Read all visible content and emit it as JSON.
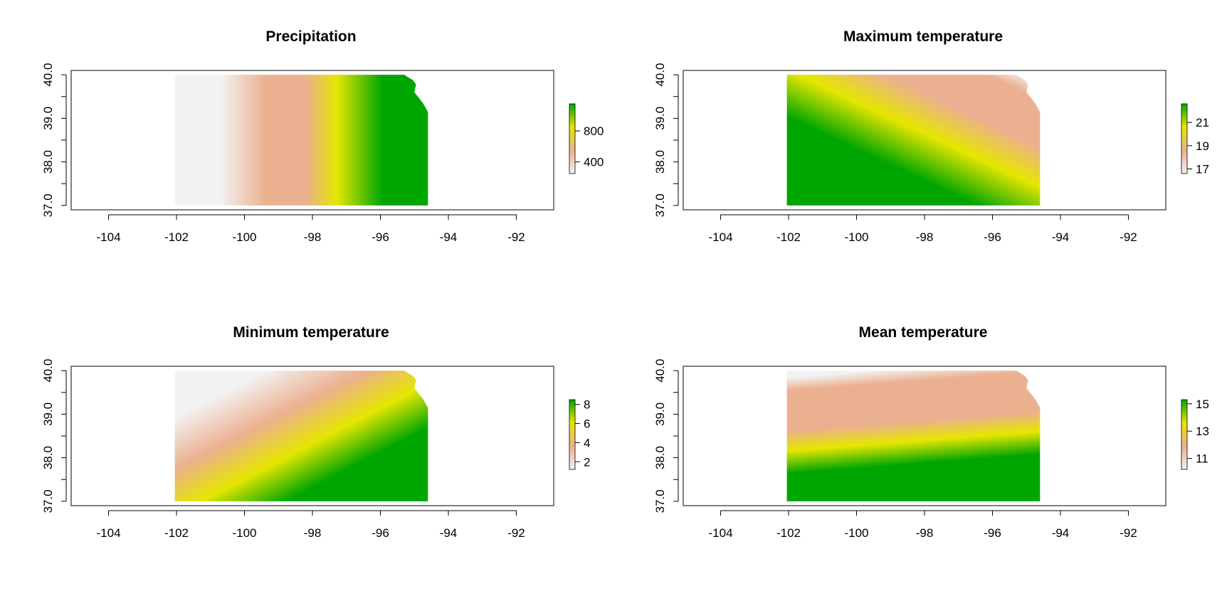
{
  "chart_data": [
    {
      "type": "heatmap",
      "title": "Precipitation",
      "xlabel": "",
      "ylabel": "",
      "xlim": [
        -105.1,
        -90.9
      ],
      "ylim": [
        36.9,
        40.1
      ],
      "xticks": [
        -104,
        -102,
        -100,
        -98,
        -96,
        -94,
        -92
      ],
      "xtick_labels": [
        "-104",
        "-102",
        "-100",
        "-98",
        "-96",
        "-94",
        "-92"
      ],
      "yticks": [
        37.0,
        38.0,
        39.0,
        40.0
      ],
      "ytick_labels": [
        "37.0",
        "38.0",
        "39.0",
        "40.0"
      ],
      "grid": false,
      "legend": {
        "position": "right",
        "range": [
          250,
          1150
        ],
        "ticks": [
          400,
          800
        ],
        "labels": [
          "400",
          "800"
        ]
      },
      "raster": {
        "extent": {
          "x": [
            -102.05,
            -94.6
          ],
          "y": [
            37.0,
            40.0
          ]
        },
        "pattern": "west-to-east"
      }
    },
    {
      "type": "heatmap",
      "title": "Maximum temperature",
      "xlabel": "",
      "ylabel": "",
      "xlim": [
        -105.1,
        -90.9
      ],
      "ylim": [
        36.9,
        40.1
      ],
      "xticks": [
        -104,
        -102,
        -100,
        -98,
        -96,
        -94,
        -92
      ],
      "xtick_labels": [
        "-104",
        "-102",
        "-100",
        "-98",
        "-96",
        "-94",
        "-92"
      ],
      "yticks": [
        37.0,
        38.0,
        39.0,
        40.0
      ],
      "ytick_labels": [
        "37.0",
        "38.0",
        "39.0",
        "40.0"
      ],
      "grid": false,
      "legend": {
        "position": "right",
        "range": [
          16.6,
          22.6
        ],
        "ticks": [
          17,
          19,
          21
        ],
        "labels": [
          "17",
          "19",
          "21"
        ]
      },
      "raster": {
        "extent": {
          "x": [
            -102.05,
            -94.6
          ],
          "y": [
            37.0,
            40.0
          ]
        },
        "pattern": "southwest-high"
      }
    },
    {
      "type": "heatmap",
      "title": "Minimum temperature",
      "xlabel": "",
      "ylabel": "",
      "xlim": [
        -105.1,
        -90.9
      ],
      "ylim": [
        36.9,
        40.1
      ],
      "xticks": [
        -104,
        -102,
        -100,
        -98,
        -96,
        -94,
        -92
      ],
      "xtick_labels": [
        "-104",
        "-102",
        "-100",
        "-98",
        "-96",
        "-94",
        "-92"
      ],
      "yticks": [
        37.0,
        38.0,
        39.0,
        40.0
      ],
      "ytick_labels": [
        "37.0",
        "38.0",
        "39.0",
        "40.0"
      ],
      "grid": false,
      "legend": {
        "position": "right",
        "range": [
          1.2,
          8.5
        ],
        "ticks": [
          2,
          4,
          6,
          8
        ],
        "labels": [
          "2",
          "4",
          "6",
          "8"
        ]
      },
      "raster": {
        "extent": {
          "x": [
            -102.05,
            -94.6
          ],
          "y": [
            37.0,
            40.0
          ]
        },
        "pattern": "southeast-high"
      }
    },
    {
      "type": "heatmap",
      "title": "Mean temperature",
      "xlabel": "",
      "ylabel": "",
      "xlim": [
        -105.1,
        -90.9
      ],
      "ylim": [
        36.9,
        40.1
      ],
      "xticks": [
        -104,
        -102,
        -100,
        -98,
        -96,
        -94,
        -92
      ],
      "xtick_labels": [
        "-104",
        "-102",
        "-100",
        "-98",
        "-96",
        "-94",
        "-92"
      ],
      "yticks": [
        37.0,
        38.0,
        39.0,
        40.0
      ],
      "ytick_labels": [
        "37.0",
        "38.0",
        "39.0",
        "40.0"
      ],
      "grid": false,
      "legend": {
        "position": "right",
        "range": [
          10.2,
          15.3
        ],
        "ticks": [
          11,
          13,
          15
        ],
        "labels": [
          "11",
          "13",
          "15"
        ]
      },
      "raster": {
        "extent": {
          "x": [
            -102.05,
            -94.6
          ],
          "y": [
            37.0,
            40.0
          ]
        },
        "pattern": "south-high"
      }
    }
  ],
  "colors": {
    "low": "#f2f2f2",
    "low_mid": "#ebb08f",
    "mid": "#e6e600",
    "high": "#00a600"
  }
}
